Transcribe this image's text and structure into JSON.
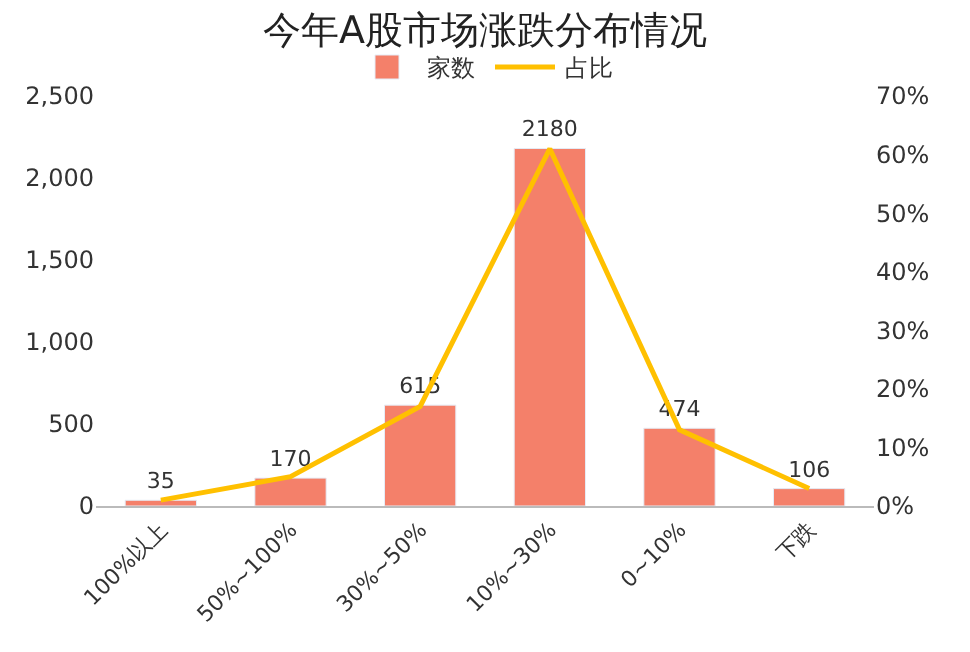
{
  "chart_data": {
    "type": "bar",
    "title": "今年A股市场涨跌分布情况",
    "categories": [
      "100%以上",
      "50%~100%",
      "30%~50%",
      "10%~30%",
      "0~10%",
      "下跌"
    ],
    "series": [
      {
        "name": "家数",
        "color": "#f4806a",
        "values": [
          35,
          170,
          615,
          2180,
          474,
          106
        ],
        "value_labels": [
          "35",
          "170",
          "615",
          "2180",
          "474",
          "106"
        ]
      },
      {
        "name": "占比",
        "type": "line",
        "axis": "y2",
        "color": "#ffc000",
        "values": [
          1,
          5,
          17,
          61,
          13,
          3
        ]
      }
    ],
    "ylim": [
      0,
      2500
    ],
    "yticks": [
      0,
      {
        "value": 500,
        "label": "500"
      },
      {
        "value": 1000,
        "label": "1,000"
      },
      {
        "value": 1500,
        "label": "1,500"
      },
      {
        "value": 2000,
        "label": "2,000"
      },
      {
        "value": 2500,
        "label": "2,500"
      }
    ],
    "y2lim": [
      0,
      70
    ],
    "y2ticks": [
      {
        "value": 0,
        "label": "0%"
      },
      {
        "value": 10,
        "label": "10%"
      },
      {
        "value": 20,
        "label": "20%"
      },
      {
        "value": 30,
        "label": "30%"
      },
      {
        "value": 40,
        "label": "40%"
      },
      {
        "value": 50,
        "label": "50%"
      },
      {
        "value": 60,
        "label": "60%"
      },
      {
        "value": 70,
        "label": "70%"
      }
    ],
    "legend": "top",
    "marker": "none",
    "line_style": "solid"
  }
}
